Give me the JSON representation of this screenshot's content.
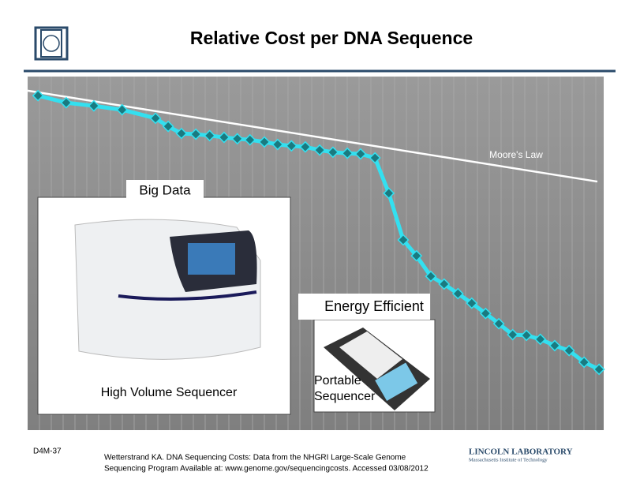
{
  "header": {
    "title": "Relative Cost per DNA Sequence"
  },
  "chart_data": {
    "type": "line",
    "color": "#33e0f0",
    "marker_color": "#1a7a80",
    "x": [
      1.8,
      6.7,
      11.5,
      16.4,
      22.2,
      24.4,
      26.7,
      29.2,
      31.6,
      34.1,
      36.4,
      38.6,
      41.1,
      43.4,
      45.8,
      48.2,
      50.7,
      53.0,
      55.5,
      57.8,
      60.3,
      62.7,
      65.2,
      67.5,
      70.0,
      72.3,
      74.7,
      77.1,
      79.5,
      81.8,
      84.2,
      86.6,
      89.0,
      91.5,
      94.0,
      96.6,
      99.2
    ],
    "values": [
      94.6,
      92.6,
      91.7,
      90.6,
      88.2,
      85.9,
      83.9,
      83.7,
      83.3,
      82.8,
      82.4,
      82.1,
      81.5,
      80.8,
      80.4,
      80.1,
      79.2,
      78.6,
      78.3,
      78.1,
      77.0,
      67.0,
      53.8,
      49.3,
      43.5,
      41.3,
      38.6,
      35.9,
      33.0,
      30.1,
      27.0,
      26.8,
      25.7,
      23.9,
      22.5,
      19.2,
      17.2
    ],
    "xlim": [
      0,
      100
    ],
    "ylim": [
      0,
      100
    ],
    "grid": true,
    "trend": {
      "label": "Moore's Law",
      "color": "#ffffff",
      "x": [
        0,
        98.9
      ],
      "values": [
        96.0,
        70.3
      ]
    }
  },
  "callouts": {
    "big_data": "Big Data",
    "energy_efficient": "Energy Efficient",
    "high_volume": "High Volume Sequencer",
    "portable": "Portable Sequencer"
  },
  "footer": {
    "slide_id": "D4M-37",
    "citation": [
      "Wetterstrand KA. DNA Sequencing Costs: Data from the NHGRI Large-Scale Genome",
      "Sequencing Program Available at: www.genome.gov/sequencingcosts. Accessed 03/08/2012"
    ],
    "logo": [
      "LINCOLN LABORATORY",
      "Massachusetts Institute of Technology"
    ]
  }
}
